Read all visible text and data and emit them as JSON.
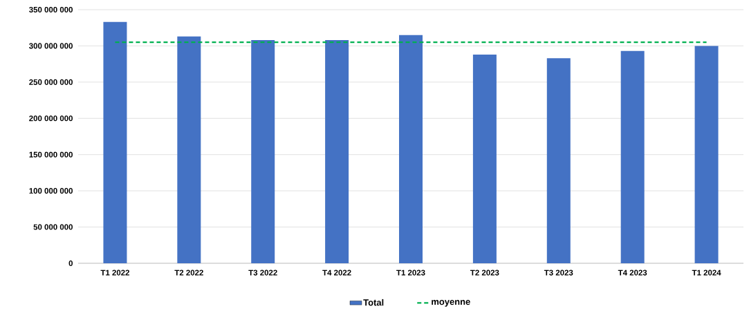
{
  "chart_data": {
    "type": "bar",
    "categories": [
      "T1 2022",
      "T2 2022",
      "T3 2022",
      "T4 2022",
      "T1 2023",
      "T2 2023",
      "T3 2023",
      "T4 2023",
      "T1 2024"
    ],
    "series": [
      {
        "name": "Total",
        "color": "#4472c4",
        "values": [
          333000000,
          313000000,
          308000000,
          308000000,
          315000000,
          288000000,
          283000000,
          293000000,
          300000000
        ]
      },
      {
        "name": "moyenne",
        "type": "line",
        "line_style": "dashed",
        "color": "#00b050",
        "values": [
          305000000,
          305000000,
          305000000,
          305000000,
          305000000,
          305000000,
          305000000,
          305000000,
          305000000
        ]
      }
    ],
    "ylim": [
      0,
      350000000
    ],
    "yticks": [
      0,
      {
        "value": 50000000,
        "label": "50 000 000"
      },
      {
        "value": 100000000,
        "label": "100 000 000"
      },
      {
        "value": 150000000,
        "label": "150 000 000"
      },
      {
        "value": 200000000,
        "label": "200 000 000"
      },
      {
        "value": 250000000,
        "label": "250 000 000"
      },
      {
        "value": 300000000,
        "label": "300 000 000"
      },
      {
        "value": 350000000,
        "label": "350 000 000"
      }
    ],
    "grid": "y",
    "legend": "bottom"
  }
}
